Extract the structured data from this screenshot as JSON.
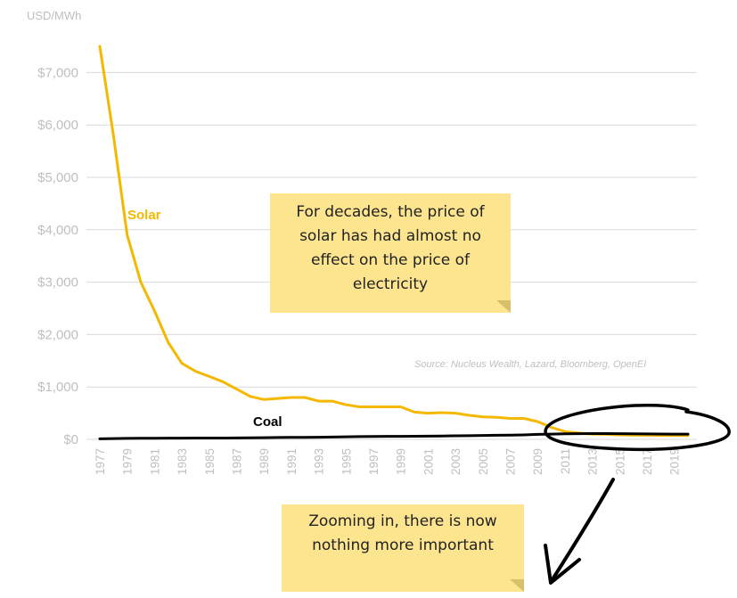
{
  "chart_data": {
    "type": "line",
    "unit_label": "USD/MWh",
    "x": [
      1977,
      1978,
      1979,
      1980,
      1981,
      1982,
      1983,
      1984,
      1985,
      1986,
      1987,
      1988,
      1989,
      1990,
      1991,
      1992,
      1993,
      1994,
      1995,
      1996,
      1997,
      1998,
      1999,
      2000,
      2001,
      2002,
      2003,
      2004,
      2005,
      2006,
      2007,
      2008,
      2009,
      2010,
      2011,
      2012,
      2013,
      2014,
      2015,
      2016,
      2017,
      2018,
      2019,
      2020
    ],
    "x_tick_labels": [
      "1977",
      "1979",
      "1981",
      "1983",
      "1985",
      "1987",
      "1989",
      "1991",
      "1993",
      "1995",
      "1997",
      "1999",
      "2001",
      "2003",
      "2005",
      "2007",
      "2009",
      "2011",
      "2013",
      "2015",
      "2017",
      "2019"
    ],
    "ylim": [
      0,
      7500
    ],
    "y_ticks": [
      0,
      1000,
      2000,
      3000,
      4000,
      5000,
      6000,
      7000
    ],
    "y_tick_labels": [
      "$0",
      "$1,000",
      "$2,000",
      "$3,000",
      "$4,000",
      "$5,000",
      "$6,000",
      "$7,000"
    ],
    "grid": true,
    "series": [
      {
        "name": "Solar",
        "color": "#f5b800",
        "values": [
          7500,
          5800,
          3900,
          3000,
          2450,
          1850,
          1450,
          1300,
          1200,
          1100,
          960,
          820,
          760,
          780,
          800,
          800,
          730,
          730,
          660,
          620,
          620,
          620,
          620,
          520,
          500,
          510,
          500,
          460,
          430,
          420,
          400,
          400,
          340,
          230,
          150,
          120,
          100,
          95,
          85,
          80,
          78,
          75,
          75,
          72
        ]
      },
      {
        "name": "Coal",
        "color": "#000000",
        "values": [
          10,
          15,
          18,
          20,
          22,
          23,
          24,
          25,
          25,
          26,
          28,
          30,
          33,
          35,
          37,
          38,
          40,
          45,
          50,
          53,
          55,
          57,
          58,
          60,
          62,
          65,
          68,
          70,
          75,
          78,
          80,
          85,
          95,
          100,
          105,
          108,
          110,
          110,
          108,
          105,
          103,
          102,
          100,
          100
        ]
      }
    ],
    "source": "Source: Nucleus Wealth, Lazard, Bloomberg, OpenEI"
  },
  "notes": {
    "top": "For decades, the price of solar has had almost no effect on the price of electricity",
    "bottom": "Zooming in, there is now nothing more important"
  },
  "colors": {
    "note_bg": "#fde58f",
    "grid": "#d9d9d9",
    "axis_text": "#bfbfbf"
  }
}
